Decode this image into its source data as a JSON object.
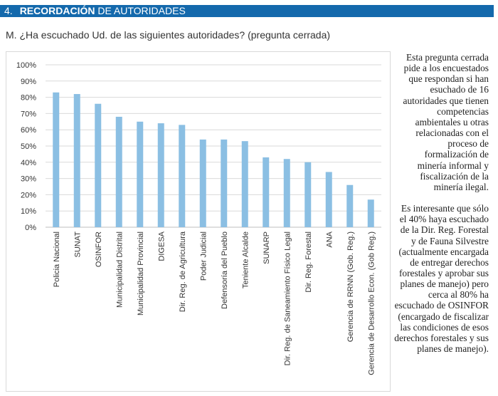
{
  "header": {
    "number": "4.",
    "title_bold": "RECORDACIÓN",
    "title_rest": "DE AUTORIDADES"
  },
  "question": "M.  ¿Ha escuchado Ud. de las siguientes autoridades? (pregunta cerrada)",
  "colors": {
    "header_bg": "#1469ac",
    "bar": "#8bbfe3",
    "grid": "#d9d9d9"
  },
  "chart_data": {
    "type": "bar",
    "title": "",
    "xlabel": "",
    "ylabel": "",
    "ylim": [
      0,
      100
    ],
    "yticks": [
      "0%",
      "10%",
      "20%",
      "30%",
      "40%",
      "50%",
      "60%",
      "70%",
      "80%",
      "90%",
      "100%"
    ],
    "grid": true,
    "categories": [
      "Policia Nacional",
      "SUNAT",
      "OSINFOR",
      "Municipalidad Distrital",
      "Municipalidad Provincial",
      "DIGESA",
      "Dir. Reg. de Agricultura",
      "Poder Judicial",
      "Defensoría del Pueblo",
      "Teniente Alcalde",
      "SUNARP",
      "Dir. Reg. de Saneamiento Físico Legal",
      "Dir. Reg. Forestal",
      "ANA",
      "Gerencia de RRNN (Gob. Reg.)",
      "Gerencia de Desarrollo Econ. (Gob Reg.)"
    ],
    "values": [
      83,
      82,
      76,
      68,
      65,
      64,
      63,
      54,
      54,
      53,
      43,
      42,
      40,
      34,
      26,
      17
    ]
  },
  "side_paragraphs": [
    "Esta pregunta cerrada pide a los encuestados que respondan si han esuchado de 16 autoridades que tienen competencias ambientales u otras relacionadas con el proceso de formalización de minería informal y fiscalización de la minería ilegal.",
    "Es interesante que sólo el 40% haya escuchado de la Dir. Reg. Forestal y de Fauna Silvestre (actualmente encargada de entregar derechos forestales y aprobar sus planes de manejo) pero cerca al 80% ha escuchado de OSINFOR (encargado de fiscalizar las condiciones de esos derechos forestales y sus planes de manejo)."
  ]
}
